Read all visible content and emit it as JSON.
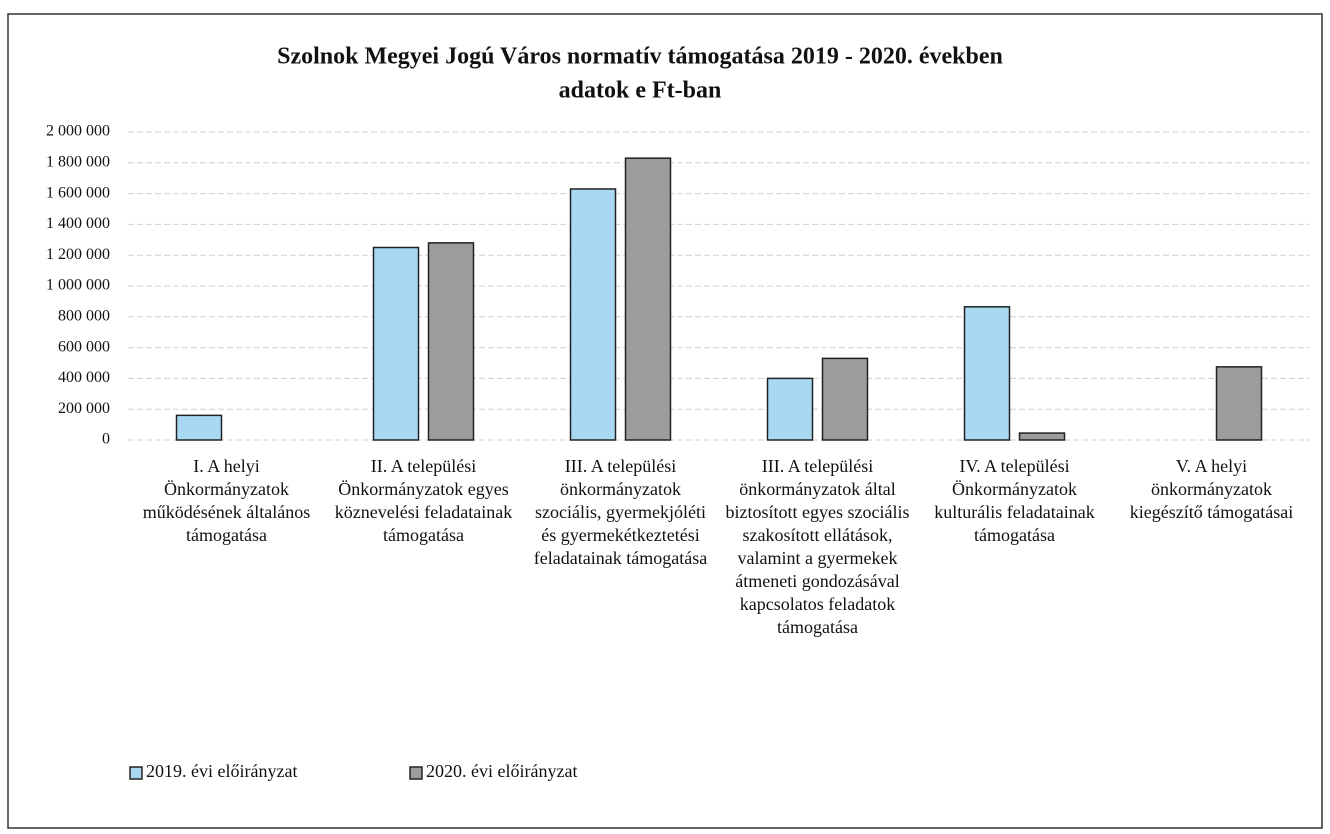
{
  "chart_data": {
    "type": "bar",
    "title": "Szolnok Megyei Jogú Város normatív támogatása 2019 - 2020. években",
    "subtitle": "adatok e Ft-ban",
    "categories": [
      "I. A helyi Önkormányzatok működésének általános támogatása",
      "II. A települési Önkormányzatok egyes köznevelési feladatainak támogatása",
      "III. A települési önkormányzatok szociális, gyermekjóléti és gyermekétkeztetési feladatainak támogatása",
      "III. A települési önkormányzatok által biztosított egyes szociális szakosított ellátások, valamint a gyermekek átmeneti gondozásával kapcsolatos feladatok támogatása",
      "IV. A települési Önkormányzatok kulturális feladatainak támogatása",
      "V. A helyi önkormányzatok kiegészítő támogatásai"
    ],
    "series": [
      {
        "name": "2019. évi előirányzat",
        "color": "#a8d8f2",
        "values": [
          160000,
          1250000,
          1630000,
          400000,
          865000,
          null
        ]
      },
      {
        "name": "2020. évi előirányzat",
        "color": "#9c9c9c",
        "values": [
          null,
          1280000,
          1830000,
          530000,
          45000,
          475000
        ]
      }
    ],
    "ylim": [
      0,
      2000000
    ],
    "yticks": [
      0,
      {
        "value": 200000,
        "label": "200 000"
      },
      {
        "value": 400000,
        "label": "400 000"
      },
      {
        "value": 600000,
        "label": "600 000"
      },
      {
        "value": 800000,
        "label": "800 000"
      },
      {
        "value": 1000000,
        "label": "1 000 000"
      },
      {
        "value": 1200000,
        "label": "1 200 000"
      },
      {
        "value": 1400000,
        "label": "1 400 000"
      },
      {
        "value": 1600000,
        "label": "1 600 000"
      },
      {
        "value": 1800000,
        "label": "1 800 000"
      },
      {
        "value": 2000000,
        "label": "2 000 000"
      }
    ],
    "grid": true,
    "legend": "bottom-left"
  }
}
